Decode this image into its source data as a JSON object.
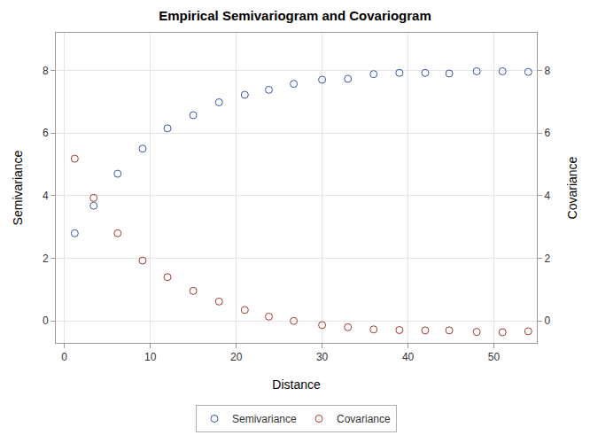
{
  "chart_data": {
    "type": "scatter",
    "title": "Empirical Semivariogram and Covariogram",
    "x_label": "Distance",
    "y_label": "Semivariance",
    "y2_label": "Covariance",
    "x": [
      1.2,
      3.4,
      6.2,
      9.1,
      12.0,
      15.0,
      18.0,
      21.0,
      23.8,
      26.7,
      30.0,
      33.0,
      36.0,
      39.0,
      42.0,
      44.8,
      48.0,
      51.0,
      54.0
    ],
    "series": [
      {
        "name": "Semivariance",
        "color": "#3a56a8",
        "marker": "circle-open",
        "values": [
          2.8,
          3.68,
          4.7,
          5.5,
          6.15,
          6.57,
          6.98,
          7.22,
          7.38,
          7.57,
          7.7,
          7.73,
          7.88,
          7.92,
          7.92,
          7.9,
          7.97,
          7.97,
          7.95
        ]
      },
      {
        "name": "Covariance",
        "color": "#a23a2e",
        "marker": "circle-open",
        "axis": "y2",
        "values": [
          5.18,
          3.93,
          2.8,
          1.93,
          1.4,
          0.96,
          0.62,
          0.35,
          0.14,
          0.0,
          -0.13,
          -0.2,
          -0.27,
          -0.29,
          -0.3,
          -0.3,
          -0.35,
          -0.36,
          -0.33
        ]
      }
    ],
    "xlim": [
      -1,
      55
    ],
    "xticks": [
      0,
      10,
      20,
      30,
      40,
      50
    ],
    "ylim": [
      -0.7,
      9.2
    ],
    "yticks": [
      0,
      2,
      4,
      6,
      8
    ],
    "y2lim": [
      -0.7,
      9.2
    ],
    "y2ticks": [
      0,
      2,
      4,
      6,
      8
    ],
    "grid": true,
    "legend": "bottom"
  }
}
